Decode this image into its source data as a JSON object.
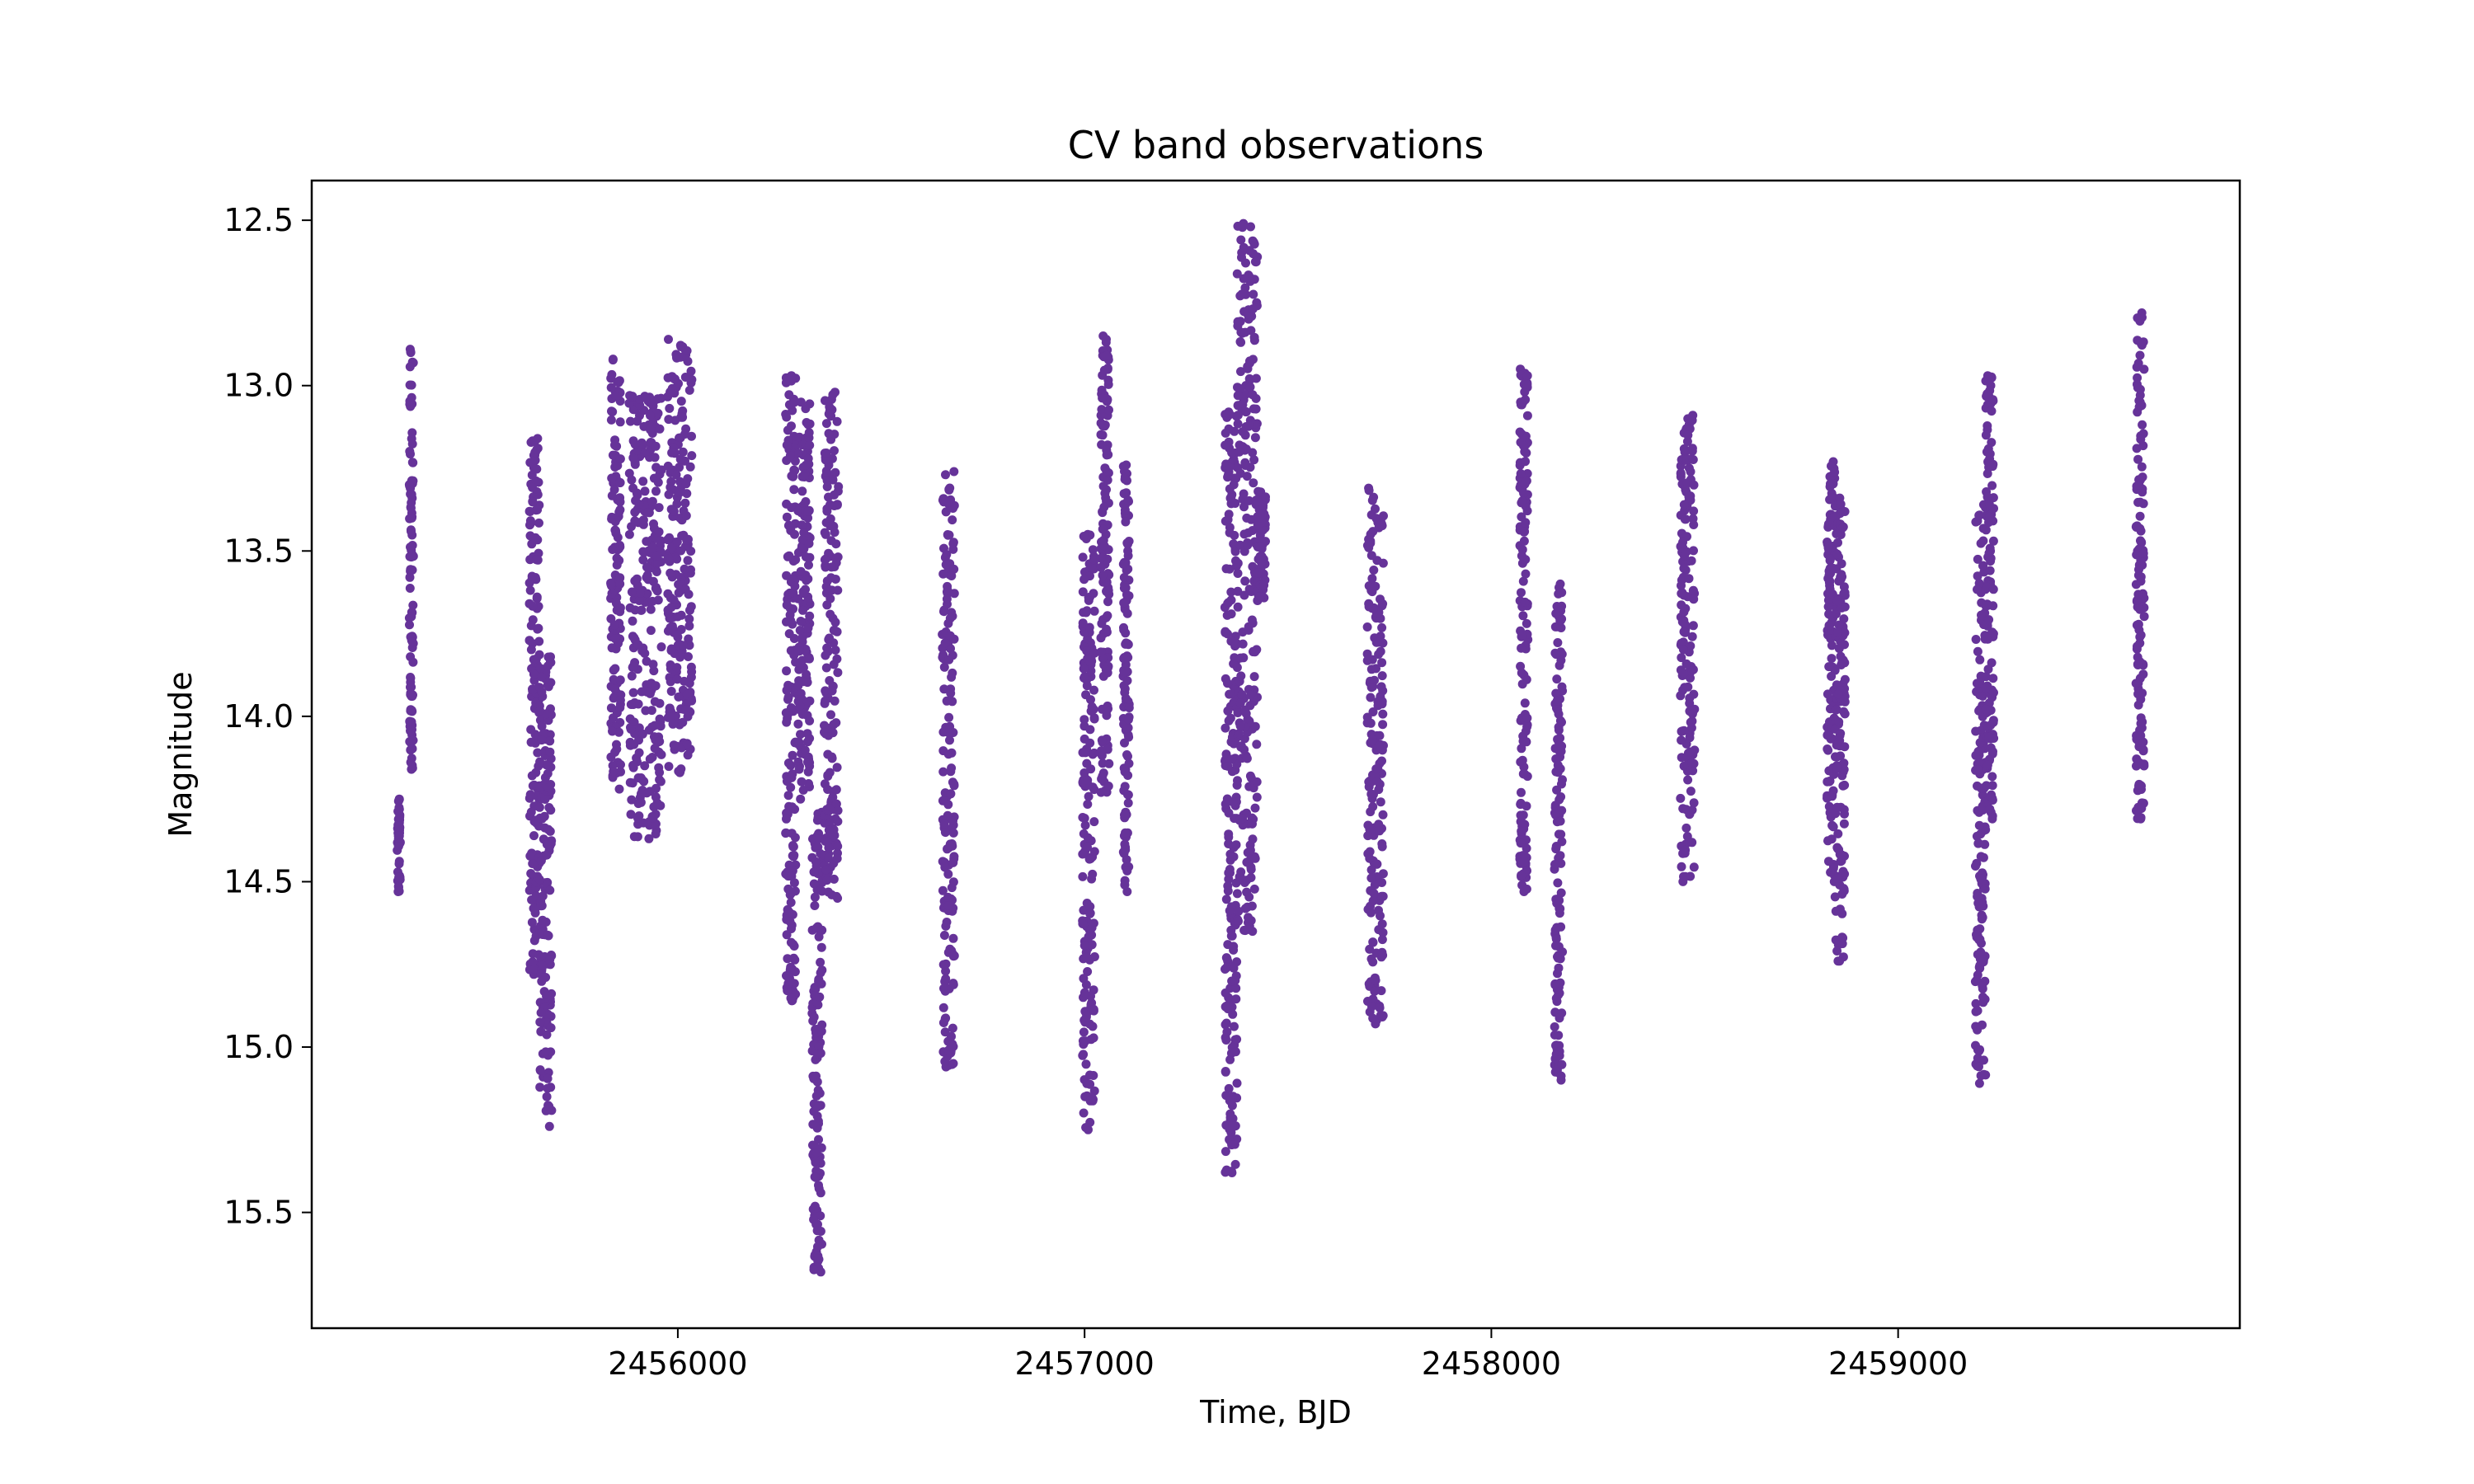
{
  "chart_data": {
    "type": "scatter",
    "title": "CV band observations",
    "xlabel": "Time, BJD",
    "ylabel": "Magnitude",
    "xlim": [
      2455100,
      2459840
    ],
    "ylim": [
      12.38,
      15.85
    ],
    "y_inverted": true,
    "grid": false,
    "legend": "none",
    "marker_color": "#663399",
    "x_ticks": [
      2456000,
      2457000,
      2458000,
      2459000
    ],
    "x_tick_labels": [
      "2456000",
      "2457000",
      "2458000",
      "2459000"
    ],
    "y_ticks": [
      12.5,
      13.0,
      13.5,
      14.0,
      14.5,
      15.0,
      15.5
    ],
    "y_tick_labels": [
      "12.5",
      "13.0",
      "13.5",
      "14.0",
      "14.5",
      "15.0",
      "15.5"
    ],
    "observing_runs": [
      {
        "x": [
          2455310,
          2455318
        ],
        "y_range": [
          14.25,
          14.53
        ]
      },
      {
        "x": [
          2455340,
          2455350
        ],
        "y_range": [
          12.89,
          14.16
        ]
      },
      {
        "x": [
          2455635,
          2455660
        ],
        "y_range": [
          13.16,
          14.78
        ]
      },
      {
        "x": [
          2455660,
          2455690
        ],
        "y_range": [
          13.82,
          15.24
        ]
      },
      {
        "x": [
          2455835,
          2455860
        ],
        "y_range": [
          12.92,
          14.22
        ]
      },
      {
        "x": [
          2455880,
          2455960
        ],
        "y_range": [
          13.03,
          14.37
        ]
      },
      {
        "x": [
          2455975,
          2456035
        ],
        "y_range": [
          12.86,
          14.17
        ]
      },
      {
        "x": [
          2456265,
          2456290
        ],
        "y_range": [
          12.97,
          14.86
        ]
      },
      {
        "x": [
          2456295,
          2456325
        ],
        "y_range": [
          13.05,
          14.25
        ]
      },
      {
        "x": [
          2456330,
          2456355
        ],
        "y_range": [
          14.29,
          15.68
        ]
      },
      {
        "x": [
          2456360,
          2456395
        ],
        "y_range": [
          13.02,
          14.55
        ]
      },
      {
        "x": [
          2456650,
          2456680
        ],
        "y_range": [
          13.26,
          15.06
        ]
      },
      {
        "x": [
          2456995,
          2457025
        ],
        "y_range": [
          13.45,
          15.25
        ]
      },
      {
        "x": [
          2457040,
          2457060
        ],
        "y_range": [
          12.85,
          14.23
        ]
      },
      {
        "x": [
          2457095,
          2457110
        ],
        "y_range": [
          13.24,
          14.53
        ]
      },
      {
        "x": [
          2457345,
          2457375
        ],
        "y_range": [
          13.08,
          15.38
        ]
      },
      {
        "x": [
          2457375,
          2457425
        ],
        "y_range": [
          12.51,
          14.65
        ]
      },
      {
        "x": [
          2457425,
          2457445
        ],
        "y_range": [
          13.32,
          13.65
        ]
      },
      {
        "x": [
          2457695,
          2457735
        ],
        "y_range": [
          13.31,
          14.93
        ]
      },
      {
        "x": [
          2458070,
          2458090
        ],
        "y_range": [
          12.95,
          14.53
        ]
      },
      {
        "x": [
          2458155,
          2458175
        ],
        "y_range": [
          13.6,
          15.1
        ]
      },
      {
        "x": [
          2458465,
          2458500
        ],
        "y_range": [
          13.09,
          14.5
        ]
      },
      {
        "x": [
          2458825,
          2458845
        ],
        "y_range": [
          13.23,
          14.5
        ]
      },
      {
        "x": [
          2458845,
          2458870
        ],
        "y_range": [
          13.34,
          14.74
        ]
      },
      {
        "x": [
          2459190,
          2459215
        ],
        "y_range": [
          13.36,
          15.11
        ]
      },
      {
        "x": [
          2459215,
          2459235
        ],
        "y_range": [
          12.97,
          14.31
        ]
      },
      {
        "x": [
          2459585,
          2459605
        ],
        "y_range": [
          12.78,
          14.31
        ]
      }
    ]
  }
}
